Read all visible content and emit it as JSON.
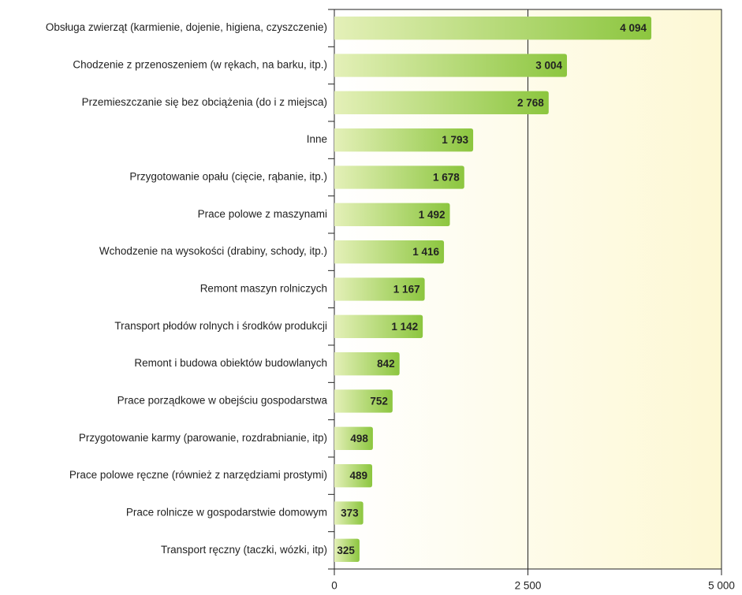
{
  "chart_data": {
    "type": "bar",
    "orientation": "horizontal",
    "categories": [
      "Obsługa zwierząt (karmienie, dojenie, higiena, czyszczenie)",
      "Chodzenie z przenoszeniem (w rękach, na barku, itp.)",
      "Przemieszczanie się bez obciążenia (do i z miejsca)",
      "Inne",
      "Przygotowanie opału (cięcie, rąbanie, itp.)",
      "Prace polowe z maszynami",
      "Wchodzenie na wysokości (drabiny, schody, itp.)",
      "Remont maszyn rolniczych",
      "Transport płodów rolnych i środków produkcji",
      "Remont i budowa obiektów budowlanych",
      "Prace porządkowe w obejściu gospodarstwa",
      "Przygotowanie karmy (parowanie, rozdrabnianie, itp)",
      "Prace polowe ręczne (również z narzędziami prostymi)",
      "Prace rolnicze w gospodarstwie domowym",
      "Transport ręczny (taczki, wózki, itp)"
    ],
    "values": [
      4094,
      3004,
      2768,
      1793,
      1678,
      1492,
      1416,
      1167,
      1142,
      842,
      752,
      498,
      489,
      373,
      325
    ],
    "value_labels": [
      "4 094",
      "3 004",
      "2 768",
      "1 793",
      "1 678",
      "1 492",
      "1 416",
      "1 167",
      "1 142",
      "842",
      "752",
      "498",
      "489",
      "373",
      "325"
    ],
    "color": "#8cc63f",
    "xlim": [
      0,
      5000
    ],
    "xticks": [
      0,
      {
        "value": 2500,
        "label": "2 500"
      },
      {
        "value": 5000,
        "label": "5 000"
      }
    ],
    "grid": true
  }
}
